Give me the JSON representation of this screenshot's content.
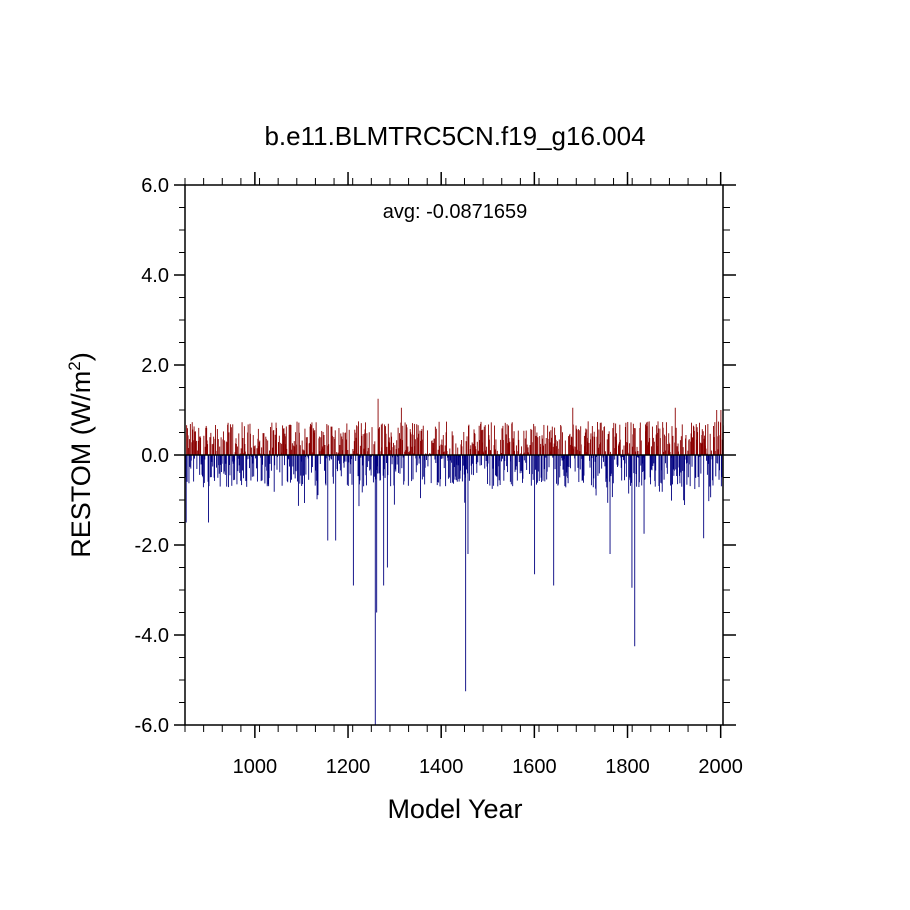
{
  "chart_data": {
    "type": "bar",
    "title": "b.e11.BLMTRC5CN.f19_g16.004",
    "xlabel": "Model Year",
    "ylabel": {
      "main": "RESTOM (W/m",
      "sup": "2",
      "close": ")"
    },
    "annotation": "avg: -0.0871659",
    "xlim": [
      850,
      2005
    ],
    "ylim": [
      -6.0,
      6.0
    ],
    "x_ticks": [
      "1000",
      "1200",
      "1400",
      "1600",
      "1800",
      "2000"
    ],
    "x_tick_values": [
      1000,
      1200,
      1400,
      1600,
      1800,
      2000
    ],
    "y_ticks": [
      "-6.0",
      "-4.0",
      "-2.0",
      "0.0",
      "2.0",
      "4.0",
      "6.0"
    ],
    "y_tick_values": [
      -6,
      -4,
      -2,
      0,
      2,
      4,
      6
    ],
    "positive_color": "#8b0000",
    "negative_color": "#000080",
    "notable_values": [
      {
        "year": 852,
        "value": -1.5
      },
      {
        "year": 900,
        "value": -1.5
      },
      {
        "year": 1156,
        "value": -1.9
      },
      {
        "year": 1173,
        "value": -1.9
      },
      {
        "year": 1211,
        "value": -2.9
      },
      {
        "year": 1258,
        "value": -6.0
      },
      {
        "year": 1261,
        "value": -3.5
      },
      {
        "year": 1264,
        "value": 1.25
      },
      {
        "year": 1276,
        "value": -2.9
      },
      {
        "year": 1284,
        "value": -2.5
      },
      {
        "year": 1314,
        "value": 1.05
      },
      {
        "year": 1452,
        "value": -5.25
      },
      {
        "year": 1457,
        "value": -2.2
      },
      {
        "year": 1600,
        "value": -2.65
      },
      {
        "year": 1641,
        "value": -2.9
      },
      {
        "year": 1682,
        "value": 1.05
      },
      {
        "year": 1762,
        "value": -2.2
      },
      {
        "year": 1809,
        "value": -2.95
      },
      {
        "year": 1815,
        "value": -4.25
      },
      {
        "year": 1835,
        "value": -1.75
      },
      {
        "year": 1902,
        "value": 1.05
      },
      {
        "year": 1963,
        "value": -1.85
      },
      {
        "year": 1991,
        "value": 1.0
      },
      {
        "year": 2000,
        "value": 1.0
      }
    ],
    "background_series": {
      "start_year": 850,
      "end_year": 2005,
      "pos_max": 0.75,
      "neg_min": -0.9
    }
  }
}
